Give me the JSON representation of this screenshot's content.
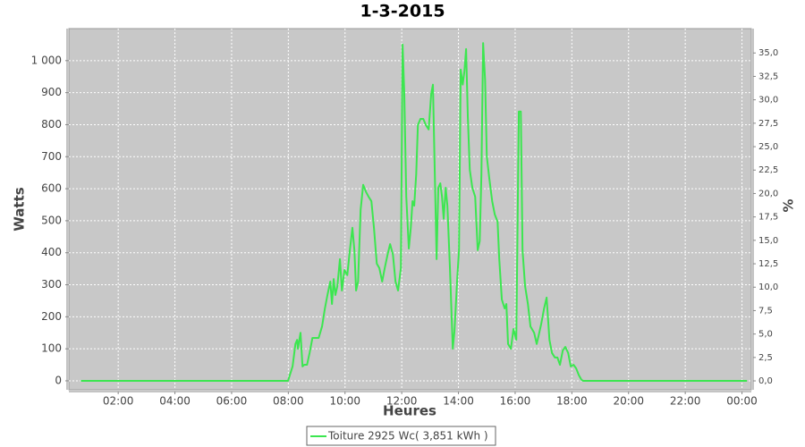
{
  "chart_data": {
    "type": "line",
    "title": "1-3-2015",
    "x_label": "Heures",
    "y_label": "Watts",
    "y2_label": "%",
    "grid": true,
    "legend": "bottom",
    "xlim": [
      0.26,
      24.33
    ],
    "xticks": [
      {
        "value": 2,
        "label": "02:00"
      },
      {
        "value": 4,
        "label": "04:00"
      },
      {
        "value": 6,
        "label": "06:00"
      },
      {
        "value": 8,
        "label": "08:00"
      },
      {
        "value": 10,
        "label": "10:00"
      },
      {
        "value": 12,
        "label": "12:00"
      },
      {
        "value": 14,
        "label": "14:00"
      },
      {
        "value": 16,
        "label": "16:00"
      },
      {
        "value": 18,
        "label": "18:00"
      },
      {
        "value": 20,
        "label": "20:00"
      },
      {
        "value": 22,
        "label": "22:00"
      },
      {
        "value": 24,
        "label": "00:00"
      }
    ],
    "ylim": [
      -28,
      1100
    ],
    "yticks": [
      0,
      100,
      200,
      300,
      400,
      500,
      600,
      700,
      800,
      900,
      {
        "value": 1000,
        "label": "1 000"
      }
    ],
    "y2lim": [
      -0.95,
      37.6
    ],
    "y2ticks": [
      {
        "value": 0,
        "label": "0,0"
      },
      {
        "value": 2.5,
        "label": "2,5"
      },
      {
        "value": 5,
        "label": "5,0"
      },
      {
        "value": 7.5,
        "label": "7,5"
      },
      {
        "value": 10,
        "label": "10,0"
      },
      {
        "value": 12.5,
        "label": "12,5"
      },
      {
        "value": 15,
        "label": "15,0"
      },
      {
        "value": 17.5,
        "label": "17,5"
      },
      {
        "value": 20,
        "label": "20,0"
      },
      {
        "value": 22.5,
        "label": "22,5"
      },
      {
        "value": 25,
        "label": "25,0"
      },
      {
        "value": 27.5,
        "label": "27,5"
      },
      {
        "value": 30,
        "label": "30,0"
      },
      {
        "value": 32.5,
        "label": "32,5"
      },
      {
        "value": 35,
        "label": "35,0"
      }
    ],
    "x": [
      0.68,
      7.99,
      8.15,
      8.25,
      8.31,
      8.34,
      8.4,
      8.43,
      8.5,
      8.56,
      8.66,
      8.75,
      8.85,
      8.94,
      9.07,
      9.19,
      9.29,
      9.38,
      9.48,
      9.54,
      9.6,
      9.66,
      9.73,
      9.82,
      9.89,
      9.98,
      10.08,
      10.17,
      10.26,
      10.33,
      10.39,
      10.46,
      10.55,
      10.64,
      10.74,
      10.83,
      10.93,
      11.02,
      11.12,
      11.21,
      11.31,
      11.4,
      11.5,
      11.59,
      11.69,
      11.78,
      11.87,
      11.97,
      12.03,
      12.09,
      12.16,
      12.25,
      12.32,
      12.38,
      12.44,
      12.51,
      12.57,
      12.66,
      12.76,
      12.85,
      12.95,
      13.04,
      13.1,
      13.17,
      13.23,
      13.29,
      13.36,
      13.42,
      13.48,
      13.55,
      13.61,
      13.7,
      13.8,
      13.86,
      13.96,
      14.02,
      14.08,
      14.15,
      14.21,
      14.27,
      14.33,
      14.4,
      14.49,
      14.59,
      14.68,
      14.75,
      14.81,
      14.87,
      14.94,
      15.0,
      15.09,
      15.19,
      15.28,
      15.38,
      15.44,
      15.53,
      15.63,
      15.69,
      15.75,
      15.85,
      15.94,
      16.04,
      16.13,
      16.2,
      16.26,
      16.35,
      16.45,
      16.54,
      16.67,
      16.76,
      16.83,
      16.92,
      17.02,
      17.11,
      17.21,
      17.3,
      17.4,
      17.49,
      17.58,
      17.68,
      17.77,
      17.87,
      17.96,
      18.06,
      18.15,
      18.25,
      18.34,
      18.4,
      24.18
    ],
    "series": [
      {
        "name": "Toiture 2925 Wc( 3,851 kWh )",
        "color": "#3ce650",
        "values": [
          0,
          0,
          45,
          115,
          128,
          100,
          134,
          150,
          45,
          50,
          50,
          87,
          134,
          134,
          134,
          170,
          226,
          268,
          310,
          240,
          318,
          268,
          296,
          380,
          282,
          346,
          330,
          408,
          478,
          408,
          282,
          310,
          534,
          612,
          590,
          575,
          561,
          478,
          366,
          352,
          310,
          352,
          394,
          427,
          394,
          310,
          282,
          352,
          1050,
          897,
          575,
          413,
          478,
          561,
          547,
          645,
          799,
          818,
          818,
          799,
          785,
          897,
          925,
          631,
          380,
          603,
          617,
          575,
          506,
          603,
          547,
          352,
          100,
          156,
          324,
          408,
          972,
          925,
          966,
          1036,
          827,
          659,
          603,
          575,
          408,
          436,
          645,
          1055,
          939,
          701,
          631,
          561,
          520,
          497,
          380,
          254,
          226,
          240,
          115,
          100,
          162,
          128,
          841,
          841,
          408,
          296,
          240,
          170,
          150,
          115,
          142,
          178,
          226,
          260,
          128,
          87,
          73,
          73,
          50,
          95,
          106,
          87,
          45,
          50,
          39,
          17,
          3,
          0,
          0
        ]
      }
    ]
  }
}
